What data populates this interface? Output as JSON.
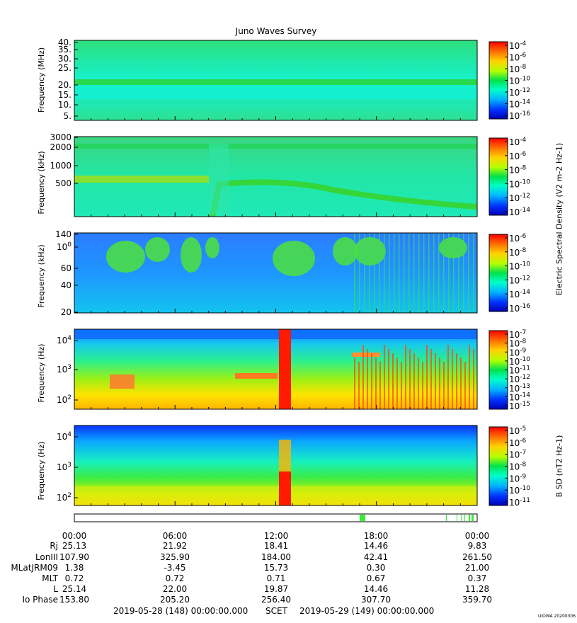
{
  "title": "Juno Waves Survey",
  "colors": {
    "background": "#ffffff",
    "flag_green": "#33ee33"
  },
  "panels": [
    {
      "name": "hfr-high",
      "ylabel": "Frequency (MHz)",
      "yticks": [
        "40.",
        "35.",
        "30.",
        "25.",
        "20.",
        "15.",
        "10.",
        "5."
      ],
      "colorbar_ticks": [
        "10-4",
        "10-6",
        "10-8",
        "10-10",
        "10-12",
        "10-14",
        "10-16"
      ]
    },
    {
      "name": "hfr-low",
      "ylabel": "Frequency (kHz)",
      "yticks": [
        "3000",
        "2000",
        "1000",
        "500"
      ],
      "colorbar_ticks": [
        "10-4",
        "10-6",
        "10-8",
        "10-10",
        "10-12",
        "10-14"
      ]
    },
    {
      "name": "lfr-high",
      "ylabel": "Frequency (kHz)",
      "yticks": [
        "140",
        "100",
        "60",
        "40",
        "20"
      ],
      "colorbar_ticks": [
        "10-6",
        "10-8",
        "10-10",
        "10-12",
        "10-14",
        "10-16"
      ]
    },
    {
      "name": "lfr-e",
      "ylabel": "Frequency (Hz)",
      "yticks": [
        "104",
        "103",
        "102"
      ],
      "colorbar_ticks": [
        "10-7",
        "10-8",
        "10-9",
        "10-10",
        "10-11",
        "10-12",
        "10-13",
        "10-14",
        "10-15"
      ]
    },
    {
      "name": "lfr-b",
      "ylabel": "Frequency (Hz)",
      "yticks": [
        "104",
        "103",
        "102"
      ],
      "colorbar_ticks": [
        "10-5",
        "10-6",
        "10-7",
        "10-8",
        "10-9",
        "10-10",
        "10-11"
      ]
    }
  ],
  "colorbar_labels": {
    "electric": "Electric Spectral Density (V2 m-2 Hz-1)",
    "magnetic": "B SD (nT2 Hz-1)"
  },
  "time_ticks": [
    "00:00",
    "06:00",
    "12:00",
    "18:00",
    "00:00"
  ],
  "ephemeris": [
    {
      "label": "Rj",
      "values": [
        "25.13",
        "21.92",
        "18.41",
        "14.46",
        "9.83"
      ]
    },
    {
      "label": "LonIII",
      "values": [
        "107.90",
        "325.90",
        "184.00",
        "42.41",
        "261.50"
      ]
    },
    {
      "label": "MLatJRM09",
      "values": [
        "1.38",
        "-3.45",
        "15.73",
        "0.30",
        "21.00"
      ]
    },
    {
      "label": "MLT",
      "values": [
        "0.72",
        "0.72",
        "0.71",
        "0.67",
        "0.37"
      ]
    },
    {
      "label": "L",
      "values": [
        "25.14",
        "22.00",
        "19.87",
        "14.46",
        "11.28"
      ]
    },
    {
      "label": "Io Phase",
      "values": [
        "153.80",
        "205.20",
        "256.40",
        "307.70",
        "359.70"
      ]
    }
  ],
  "footer": {
    "start": "2019-05-28 (148) 00:00:00.000",
    "scet": "SCET",
    "end": "2019-05-29 (149) 00:00:00.000",
    "credit": "UIOWA 20200306"
  },
  "chart_data": [
    {
      "type": "heatmap",
      "panel": "hfr-high",
      "xlabel": "SCET",
      "ylabel": "Frequency (MHz)",
      "x_range_hours": [
        0,
        24
      ],
      "ylim": [
        3,
        42
      ],
      "colorbar_range_exp": [
        -17,
        -4
      ],
      "features": [
        {
          "kind": "band",
          "y": 21,
          "level_exp": -11
        }
      ]
    },
    {
      "type": "heatmap",
      "panel": "hfr-low",
      "xlabel": "SCET",
      "ylabel": "Frequency (kHz)",
      "x_range_hours": [
        0,
        24
      ],
      "ylim": [
        150,
        3000
      ],
      "log_y": true,
      "colorbar_range_exp": [
        -15,
        -4
      ],
      "features": [
        {
          "kind": "band",
          "y": 2100,
          "level_exp": -11
        },
        {
          "kind": "band",
          "y": 580,
          "x_range_hours": [
            0,
            8
          ],
          "level_exp": -10
        }
      ]
    },
    {
      "type": "heatmap",
      "panel": "lfr-high",
      "xlabel": "SCET",
      "ylabel": "Frequency (kHz)",
      "x_range_hours": [
        0,
        24
      ],
      "ylim": [
        20,
        140
      ],
      "log_y": true,
      "colorbar_range_exp": [
        -17,
        -6
      ]
    },
    {
      "type": "heatmap",
      "panel": "lfr-e",
      "xlabel": "SCET",
      "ylabel": "Frequency (Hz)",
      "x_range_hours": [
        0,
        24
      ],
      "ylim": [
        50,
        20000
      ],
      "log_y": true,
      "colorbar_range_exp": [
        -15,
        -7
      ],
      "features": [
        {
          "kind": "band",
          "y": 600,
          "x_range_hours": [
            9.6,
            12.1
          ],
          "level_exp": -8
        },
        {
          "kind": "column",
          "x_range_hours": [
            12.2,
            12.8
          ],
          "level_exp": -7
        }
      ]
    },
    {
      "type": "heatmap",
      "panel": "lfr-b",
      "xlabel": "SCET",
      "ylabel": "Frequency (Hz)",
      "x_range_hours": [
        0,
        24
      ],
      "ylim": [
        50,
        20000
      ],
      "log_y": true,
      "colorbar_range_exp": [
        -11,
        -5
      ],
      "features": [
        {
          "kind": "column",
          "x_range_hours": [
            12.2,
            12.8
          ],
          "level_exp": -5
        }
      ]
    }
  ]
}
